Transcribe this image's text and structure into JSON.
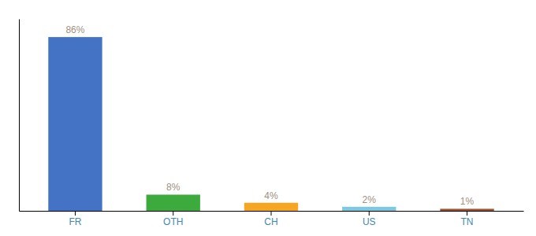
{
  "chart_data": {
    "type": "bar",
    "categories": [
      "FR",
      "OTH",
      "CH",
      "US",
      "TN"
    ],
    "values": [
      86,
      8,
      4,
      2,
      1
    ],
    "value_labels": [
      "86%",
      "8%",
      "4%",
      "2%",
      "1%"
    ],
    "colors": [
      "#4472c4",
      "#3daa3d",
      "#f5a623",
      "#7ec8e3",
      "#a0522d"
    ],
    "ylim": [
      0,
      95
    ],
    "tick_labels": "x"
  }
}
